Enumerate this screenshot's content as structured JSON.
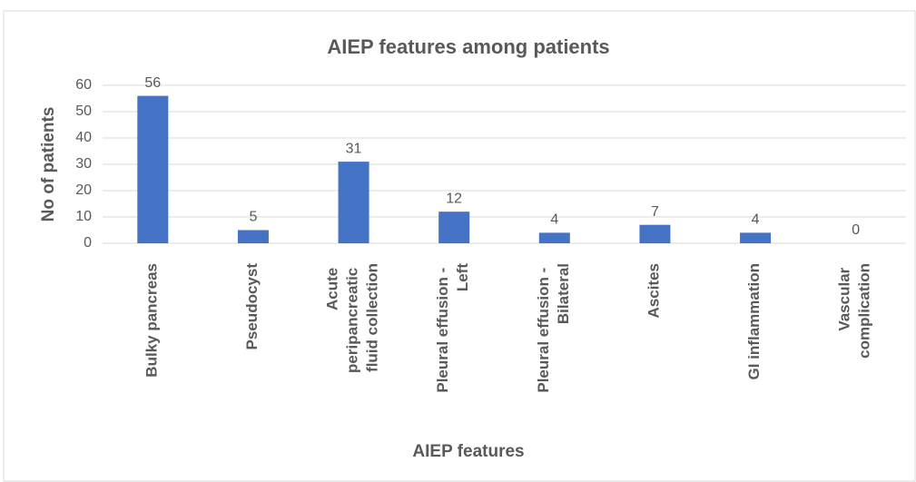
{
  "chart_data": {
    "type": "bar",
    "title": "AIEP features among patients",
    "x_label": "AIEP features",
    "y_label": "No of patients",
    "categories": [
      "Bulky pancreas",
      "Pseudocyst",
      "Acute peripancreatic fluid collection",
      "Pleural effusion - Left",
      "Pleural effusion - Bilateral",
      "Ascites",
      "GI inflammation",
      "Vascular complication"
    ],
    "values": [
      56,
      5,
      31,
      12,
      4,
      7,
      4,
      0
    ],
    "color": "#4472c4",
    "ylim": [
      0,
      60
    ],
    "yticks": [
      0,
      10,
      20,
      30,
      40,
      50,
      60
    ],
    "grid": true
  }
}
